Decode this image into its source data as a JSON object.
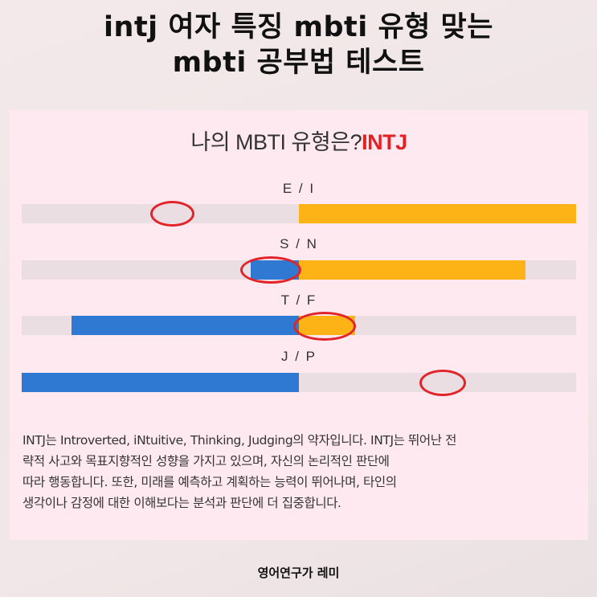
{
  "title": {
    "line1": "intj 여자 특징 mbti 유형 맞는",
    "line2": "mbti 공부법 테스트"
  },
  "card": {
    "heading_prefix": "나의 MBTI 유형은?",
    "heading_result": "INTJ"
  },
  "colors": {
    "orange": "#fdb316",
    "blue": "#2f79d3",
    "marker": "#e0242a",
    "result": "#e32024"
  },
  "scales": [
    {
      "label": "E / I",
      "fill_color": "orange",
      "fill_fraction": 0.5,
      "direction": "right"
    },
    {
      "label": "S / N",
      "fill_color": "orange",
      "fill_fraction": 0.41,
      "direction": "right",
      "marked_side_fraction": 0.09
    },
    {
      "label": "T / F",
      "fill_color": "blue",
      "fill_fraction": 0.41,
      "direction": "left"
    },
    {
      "label": "J / P",
      "fill_color": "blue",
      "fill_fraction": 0.5,
      "direction": "left"
    }
  ],
  "description": {
    "line1": "INTJ는 Introverted, iNtuitive, Thinking, Judging의 약자입니다. INTJ는 뛰어난 전",
    "line2": "략적 사고와 목표지향적인 성향을 가지고 있으며, 자신의 논리적인 판단에",
    "line3": "따라 행동합니다. 또한, 미래를 예측하고 계획하는 능력이 뛰어나며, 타인의",
    "line4": "생각이나 감정에 대한 이해보다는 분석과 판단에 더 집중합니다."
  },
  "footer": "영어연구가 레미"
}
